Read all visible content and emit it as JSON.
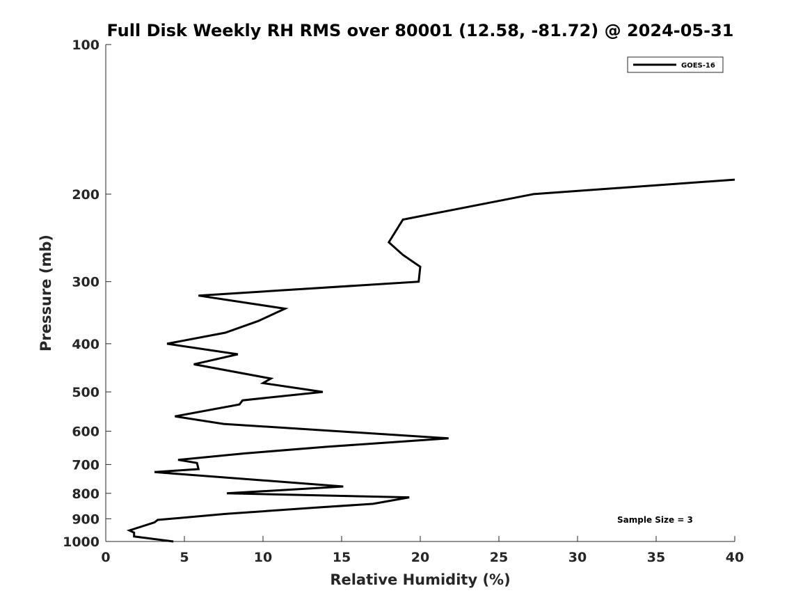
{
  "chart_data": {
    "type": "line",
    "title": "Full Disk Weekly RH RMS over 80001 (12.58, -81.72) @ 2024-05-31",
    "xlabel": "Relative Humidity (%)",
    "ylabel": "Pressure (mb)",
    "xlim": [
      0,
      40
    ],
    "ylim": [
      1000,
      100
    ],
    "yscale": "log",
    "y_reversed": true,
    "xticks": [
      0,
      5,
      10,
      15,
      20,
      25,
      30,
      35,
      40
    ],
    "yticks": [
      100,
      200,
      300,
      400,
      500,
      600,
      700,
      800,
      900,
      1000
    ],
    "grid": false,
    "legend_position": "top-right",
    "annotation": "Sample Size = 3",
    "series": [
      {
        "name": "GOES-16",
        "color": "#000000",
        "points": [
          [
            40.0,
            187
          ],
          [
            27.2,
            200
          ],
          [
            18.9,
            225
          ],
          [
            18.0,
            250
          ],
          [
            18.9,
            265
          ],
          [
            20.0,
            280
          ],
          [
            19.9,
            300
          ],
          [
            5.9,
            320
          ],
          [
            11.4,
            340
          ],
          [
            9.7,
            360
          ],
          [
            7.6,
            380
          ],
          [
            3.9,
            400
          ],
          [
            8.4,
            420
          ],
          [
            5.6,
            440
          ],
          [
            10.5,
            470
          ],
          [
            10.0,
            480
          ],
          [
            13.8,
            500
          ],
          [
            8.7,
            520
          ],
          [
            8.5,
            530
          ],
          [
            4.4,
            560
          ],
          [
            7.5,
            580
          ],
          [
            21.8,
            620
          ],
          [
            14.0,
            645
          ],
          [
            8.8,
            665
          ],
          [
            4.6,
            685
          ],
          [
            5.8,
            695
          ],
          [
            5.9,
            715
          ],
          [
            3.1,
            725
          ],
          [
            15.1,
            775
          ],
          [
            7.7,
            800
          ],
          [
            19.3,
            815
          ],
          [
            17.0,
            840
          ],
          [
            13.3,
            855
          ],
          [
            7.6,
            880
          ],
          [
            3.3,
            905
          ],
          [
            3.1,
            915
          ],
          [
            1.5,
            950
          ],
          [
            1.8,
            960
          ],
          [
            1.8,
            977
          ],
          [
            4.3,
            1000
          ]
        ]
      }
    ]
  }
}
